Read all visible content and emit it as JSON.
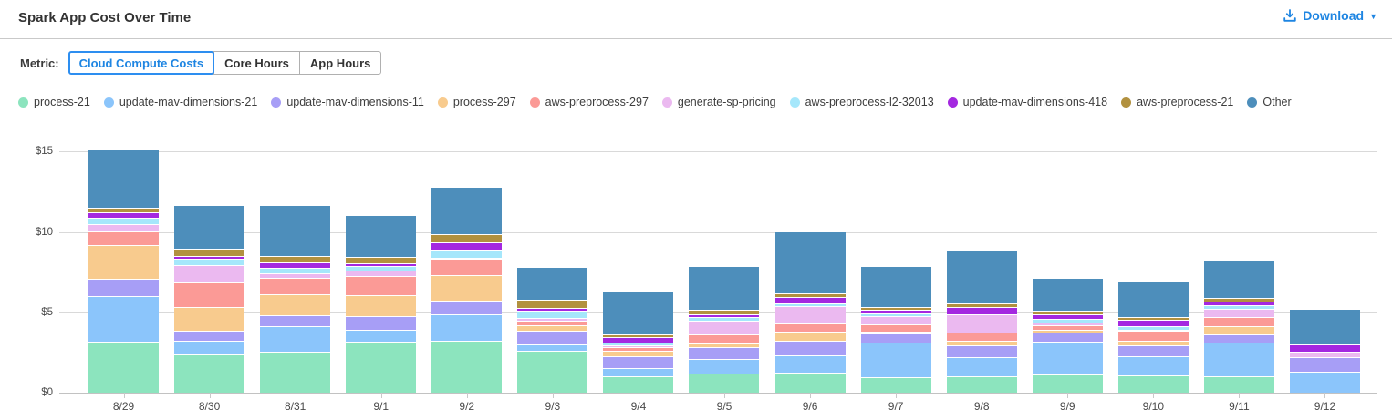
{
  "header": {
    "title": "Spark App Cost Over Time",
    "download_label": "Download",
    "download_color": "#1E85E2"
  },
  "metric": {
    "label": "Metric:",
    "options": [
      {
        "label": "Cloud Compute Costs",
        "selected": true
      },
      {
        "label": "Core Hours",
        "selected": false
      },
      {
        "label": "App Hours",
        "selected": false
      }
    ],
    "selected_color": "#1E85E2"
  },
  "chart_data": {
    "type": "bar",
    "stacked": true,
    "title": "",
    "xlabel": "",
    "ylabel": "",
    "grid": true,
    "legend_position": "top",
    "ylim": [
      0,
      15.9
    ],
    "ytick_values": [
      0,
      5,
      10,
      15
    ],
    "ytick_labels": [
      "$0",
      "$5",
      "$10",
      "$15"
    ],
    "categories": [
      "8/29",
      "8/30",
      "8/31",
      "9/1",
      "9/2",
      "9/3",
      "9/4",
      "9/5",
      "9/6",
      "9/7",
      "9/8",
      "9/9",
      "9/10",
      "9/11",
      "9/12"
    ],
    "series": [
      {
        "name": "process-21",
        "color": "#8CE4BE",
        "values": [
          3.13,
          2.31,
          2.48,
          3.09,
          3.2,
          2.56,
          0.94,
          1.13,
          1.18,
          0.9,
          0.94,
          1.07,
          1.04,
          0.94,
          0
        ]
      },
      {
        "name": "update-mav-dimensions-21",
        "color": "#8BC5FB",
        "values": [
          2.83,
          0.88,
          1.59,
          0.75,
          1.62,
          0.37,
          0.53,
          0.9,
          1.08,
          2.17,
          1.19,
          2.04,
          1.16,
          2.11,
          1.23
        ]
      },
      {
        "name": "update-mav-dimensions-11",
        "color": "#A79EF6",
        "values": [
          1.04,
          0.6,
          0.67,
          0.85,
          0.82,
          0.87,
          0.75,
          0.75,
          0.94,
          0.56,
          0.75,
          0.6,
          0.68,
          0.53,
          0.94
        ]
      },
      {
        "name": "process-297",
        "color": "#F8CB8E",
        "values": [
          2.1,
          1.46,
          1.3,
          1.31,
          1.62,
          0.34,
          0.34,
          0.23,
          0.56,
          0.09,
          0.27,
          0.15,
          0.27,
          0.51,
          0
        ]
      },
      {
        "name": "aws-preprocess-297",
        "color": "#FB9A96",
        "values": [
          0.9,
          1.55,
          1.05,
          1.18,
          1.0,
          0.26,
          0.19,
          0.57,
          0.49,
          0.48,
          0.52,
          0.29,
          0.66,
          0.57,
          0
        ]
      },
      {
        "name": "generate-sp-pricing",
        "color": "#EBB9F0",
        "values": [
          0.4,
          1.08,
          0.26,
          0.36,
          0.05,
          0.2,
          0.13,
          0.86,
          1.07,
          0.5,
          1.12,
          0.13,
          0.05,
          0.52,
          0.34
        ]
      },
      {
        "name": "aws-preprocess-l2-32013",
        "color": "#A5E7FB",
        "values": [
          0.45,
          0.42,
          0.34,
          0.3,
          0.53,
          0.42,
          0.19,
          0.22,
          0.19,
          0.15,
          0.05,
          0.24,
          0.2,
          0.23,
          0
        ]
      },
      {
        "name": "update-mav-dimensions-418",
        "color": "#A428E0",
        "values": [
          0.3,
          0.14,
          0.37,
          0.13,
          0.47,
          0.17,
          0.31,
          0.15,
          0.38,
          0.23,
          0.44,
          0.28,
          0.42,
          0.18,
          0.45
        ]
      },
      {
        "name": "aws-preprocess-21",
        "color": "#B2913F",
        "values": [
          0.28,
          0.46,
          0.41,
          0.41,
          0.51,
          0.51,
          0.2,
          0.27,
          0.24,
          0.19,
          0.22,
          0.23,
          0.19,
          0.25,
          0
        ]
      },
      {
        "name": "Other",
        "color": "#4D8EBB",
        "values": [
          3.65,
          2.7,
          3.13,
          2.59,
          2.95,
          2.07,
          2.68,
          2.74,
          3.84,
          2.55,
          3.3,
          2.03,
          2.26,
          2.39,
          2.18
        ]
      }
    ]
  }
}
